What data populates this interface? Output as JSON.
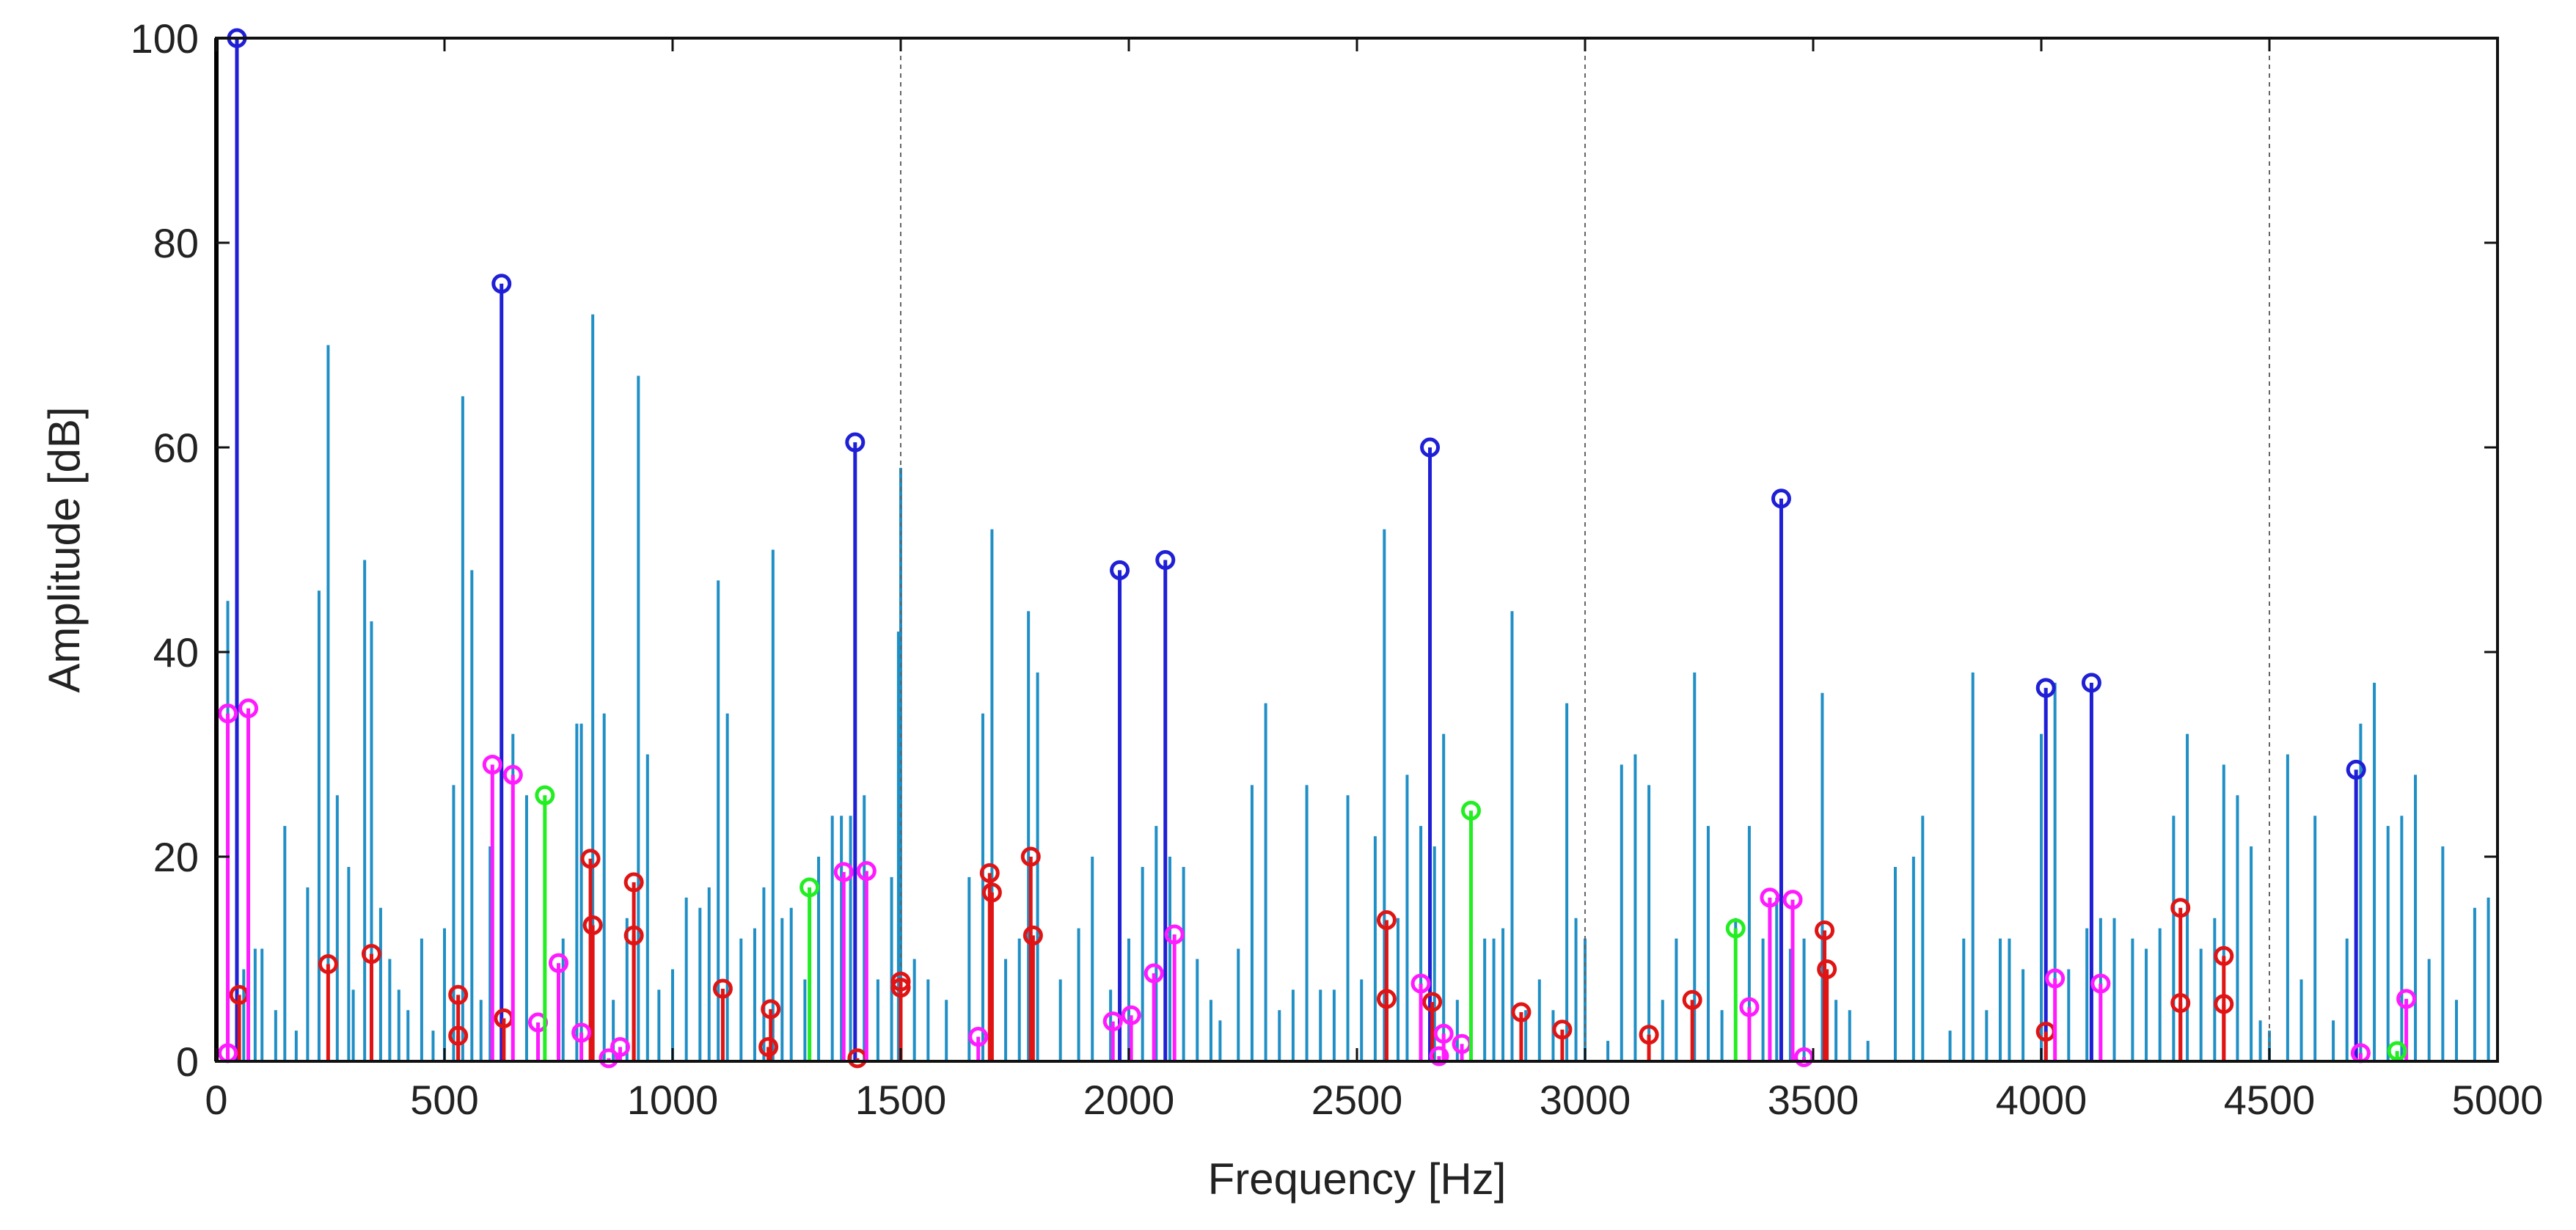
{
  "chart_data": {
    "type": "stem",
    "xlabel": "Frequency [Hz]",
    "ylabel": "Amplitude [dB]",
    "xlim": [
      0,
      5000
    ],
    "ylim": [
      0,
      100
    ],
    "xticks": [
      "0",
      "500",
      "1000",
      "1500",
      "2000",
      "2500",
      "3000",
      "3500",
      "4000",
      "4500",
      "5000"
    ],
    "yticks": [
      "0",
      "20",
      "40",
      "60",
      "80",
      "100"
    ],
    "vlines": [
      1500,
      3000,
      4500
    ],
    "grid": false,
    "legend": "none",
    "colors": {
      "spectrum": "#1f8fc6",
      "blue": "#1f1fd6",
      "red": "#e01414",
      "magenta": "#ff1aff",
      "green": "#22ee22"
    },
    "spectrum": [
      [
        25,
        45
      ],
      [
        45,
        13
      ],
      [
        60,
        9
      ],
      [
        85,
        11
      ],
      [
        100,
        11
      ],
      [
        130,
        5
      ],
      [
        150,
        23
      ],
      [
        175,
        3
      ],
      [
        200,
        17
      ],
      [
        225,
        46
      ],
      [
        245,
        70
      ],
      [
        265,
        26
      ],
      [
        290,
        19
      ],
      [
        300,
        7
      ],
      [
        325,
        49
      ],
      [
        340,
        43
      ],
      [
        360,
        15
      ],
      [
        380,
        10
      ],
      [
        400,
        7
      ],
      [
        420,
        5
      ],
      [
        450,
        12
      ],
      [
        475,
        3
      ],
      [
        500,
        13
      ],
      [
        520,
        27
      ],
      [
        540,
        65
      ],
      [
        560,
        48
      ],
      [
        580,
        6
      ],
      [
        600,
        21
      ],
      [
        625,
        30
      ],
      [
        650,
        32
      ],
      [
        680,
        26
      ],
      [
        720,
        9
      ],
      [
        760,
        12
      ],
      [
        790,
        33
      ],
      [
        800,
        33
      ],
      [
        825,
        73
      ],
      [
        850,
        34
      ],
      [
        870,
        6
      ],
      [
        900,
        14
      ],
      [
        925,
        67
      ],
      [
        945,
        30
      ],
      [
        970,
        7
      ],
      [
        1000,
        9
      ],
      [
        1030,
        16
      ],
      [
        1060,
        15
      ],
      [
        1080,
        17
      ],
      [
        1100,
        47
      ],
      [
        1120,
        34
      ],
      [
        1150,
        12
      ],
      [
        1180,
        13
      ],
      [
        1200,
        17
      ],
      [
        1220,
        50
      ],
      [
        1240,
        14
      ],
      [
        1260,
        15
      ],
      [
        1290,
        8
      ],
      [
        1320,
        20
      ],
      [
        1350,
        24
      ],
      [
        1370,
        24
      ],
      [
        1390,
        24
      ],
      [
        1420,
        26
      ],
      [
        1450,
        8
      ],
      [
        1480,
        18
      ],
      [
        1495,
        42
      ],
      [
        1500,
        58
      ],
      [
        1530,
        10
      ],
      [
        1560,
        8
      ],
      [
        1600,
        6
      ],
      [
        1650,
        18
      ],
      [
        1680,
        34
      ],
      [
        1700,
        52
      ],
      [
        1730,
        10
      ],
      [
        1760,
        12
      ],
      [
        1780,
        44
      ],
      [
        1800,
        38
      ],
      [
        1850,
        8
      ],
      [
        1890,
        13
      ],
      [
        1920,
        20
      ],
      [
        1960,
        7
      ],
      [
        2000,
        12
      ],
      [
        2030,
        19
      ],
      [
        2060,
        23
      ],
      [
        2090,
        20
      ],
      [
        2120,
        19
      ],
      [
        2150,
        10
      ],
      [
        2180,
        6
      ],
      [
        2200,
        4
      ],
      [
        2240,
        11
      ],
      [
        2270,
        27
      ],
      [
        2300,
        35
      ],
      [
        2330,
        5
      ],
      [
        2360,
        7
      ],
      [
        2390,
        27
      ],
      [
        2420,
        7
      ],
      [
        2450,
        7
      ],
      [
        2480,
        26
      ],
      [
        2510,
        8
      ],
      [
        2540,
        22
      ],
      [
        2560,
        52
      ],
      [
        2590,
        14
      ],
      [
        2610,
        28
      ],
      [
        2640,
        23
      ],
      [
        2670,
        21
      ],
      [
        2690,
        32
      ],
      [
        2720,
        6
      ],
      [
        2750,
        14
      ],
      [
        2780,
        12
      ],
      [
        2800,
        12
      ],
      [
        2820,
        13
      ],
      [
        2840,
        44
      ],
      [
        2870,
        5
      ],
      [
        2900,
        8
      ],
      [
        2930,
        5
      ],
      [
        2960,
        35
      ],
      [
        2980,
        14
      ],
      [
        3000,
        12
      ],
      [
        3050,
        2
      ],
      [
        3080,
        29
      ],
      [
        3110,
        30
      ],
      [
        3140,
        27
      ],
      [
        3170,
        6
      ],
      [
        3200,
        12
      ],
      [
        3240,
        38
      ],
      [
        3270,
        23
      ],
      [
        3300,
        5
      ],
      [
        3330,
        14
      ],
      [
        3360,
        23
      ],
      [
        3390,
        12
      ],
      [
        3420,
        16
      ],
      [
        3450,
        11
      ],
      [
        3480,
        12
      ],
      [
        3520,
        36
      ],
      [
        3550,
        6
      ],
      [
        3580,
        5
      ],
      [
        3620,
        2
      ],
      [
        3680,
        19
      ],
      [
        3720,
        20
      ],
      [
        3740,
        24
      ],
      [
        3800,
        3
      ],
      [
        3830,
        12
      ],
      [
        3850,
        38
      ],
      [
        3880,
        5
      ],
      [
        3910,
        12
      ],
      [
        3930,
        12
      ],
      [
        3960,
        9
      ],
      [
        4000,
        32
      ],
      [
        4030,
        37
      ],
      [
        4060,
        9
      ],
      [
        4100,
        13
      ],
      [
        4130,
        14
      ],
      [
        4160,
        14
      ],
      [
        4200,
        12
      ],
      [
        4230,
        11
      ],
      [
        4260,
        13
      ],
      [
        4290,
        24
      ],
      [
        4320,
        32
      ],
      [
        4350,
        11
      ],
      [
        4380,
        14
      ],
      [
        4400,
        29
      ],
      [
        4430,
        26
      ],
      [
        4460,
        21
      ],
      [
        4480,
        4
      ],
      [
        4500,
        3
      ],
      [
        4540,
        30
      ],
      [
        4570,
        8
      ],
      [
        4600,
        24
      ],
      [
        4640,
        4
      ],
      [
        4670,
        12
      ],
      [
        4700,
        33
      ],
      [
        4730,
        37
      ],
      [
        4760,
        23
      ],
      [
        4790,
        24
      ],
      [
        4820,
        28
      ],
      [
        4850,
        10
      ],
      [
        4880,
        21
      ],
      [
        4910,
        6
      ],
      [
        4950,
        15
      ],
      [
        4980,
        16
      ],
      [
        5000,
        20
      ]
    ],
    "series": [
      {
        "color_key": "blue",
        "points": [
          [
            45,
            100
          ],
          [
            625,
            76
          ],
          [
            1400,
            60.5
          ],
          [
            1980,
            48
          ],
          [
            2080,
            49
          ],
          [
            2660,
            60
          ],
          [
            3430,
            55
          ],
          [
            4010,
            36.5
          ],
          [
            4110,
            37
          ],
          [
            4690,
            28.5
          ]
        ]
      },
      {
        "color_key": "red",
        "points": [
          [
            50,
            6.5
          ],
          [
            245,
            9.5
          ],
          [
            340,
            10.5
          ],
          [
            530,
            6.5
          ],
          [
            530,
            2.5
          ],
          [
            630,
            4.2
          ],
          [
            820,
            19.8
          ],
          [
            825,
            13.3
          ],
          [
            915,
            17.5
          ],
          [
            915,
            12.3
          ],
          [
            1110,
            7.1
          ],
          [
            1215,
            5.1
          ],
          [
            1210,
            1.4
          ],
          [
            1405,
            0.3
          ],
          [
            1500,
            7.8
          ],
          [
            1500,
            7.2
          ],
          [
            1695,
            18.4
          ],
          [
            1700,
            16.5
          ],
          [
            1785,
            20
          ],
          [
            1790,
            12.3
          ],
          [
            2565,
            13.8
          ],
          [
            2565,
            6.1
          ],
          [
            2665,
            5.8
          ],
          [
            2860,
            4.8
          ],
          [
            2950,
            3.1
          ],
          [
            3140,
            2.6
          ],
          [
            3235,
            6.0
          ],
          [
            3525,
            12.8
          ],
          [
            3530,
            9.0
          ],
          [
            4010,
            2.9
          ],
          [
            4305,
            15
          ],
          [
            4305,
            5.7
          ],
          [
            4400,
            10.3
          ],
          [
            4400,
            5.6
          ]
        ]
      },
      {
        "color_key": "magenta",
        "points": [
          [
            25,
            34
          ],
          [
            70,
            34.5
          ],
          [
            25,
            0.8
          ],
          [
            605,
            29
          ],
          [
            650,
            28
          ],
          [
            705,
            3.8
          ],
          [
            750,
            9.6
          ],
          [
            800,
            2.8
          ],
          [
            860,
            0.3
          ],
          [
            885,
            1.4
          ],
          [
            1375,
            18.5
          ],
          [
            1425,
            18.6
          ],
          [
            1670,
            2.4
          ],
          [
            1965,
            3.9
          ],
          [
            2005,
            4.5
          ],
          [
            2055,
            8.6
          ],
          [
            2100,
            12.4
          ],
          [
            2640,
            7.6
          ],
          [
            2680,
            0.5
          ],
          [
            2690,
            2.7
          ],
          [
            2730,
            1.7
          ],
          [
            3360,
            5.3
          ],
          [
            3405,
            16
          ],
          [
            3455,
            15.8
          ],
          [
            3480,
            0.4
          ],
          [
            4030,
            8.1
          ],
          [
            4130,
            7.6
          ],
          [
            4700,
            0.8
          ],
          [
            4800,
            6.1
          ]
        ]
      },
      {
        "color_key": "green",
        "points": [
          [
            720,
            26
          ],
          [
            1300,
            17
          ],
          [
            2750,
            24.5
          ],
          [
            3330,
            13
          ],
          [
            4780,
            1.0
          ]
        ]
      }
    ]
  }
}
